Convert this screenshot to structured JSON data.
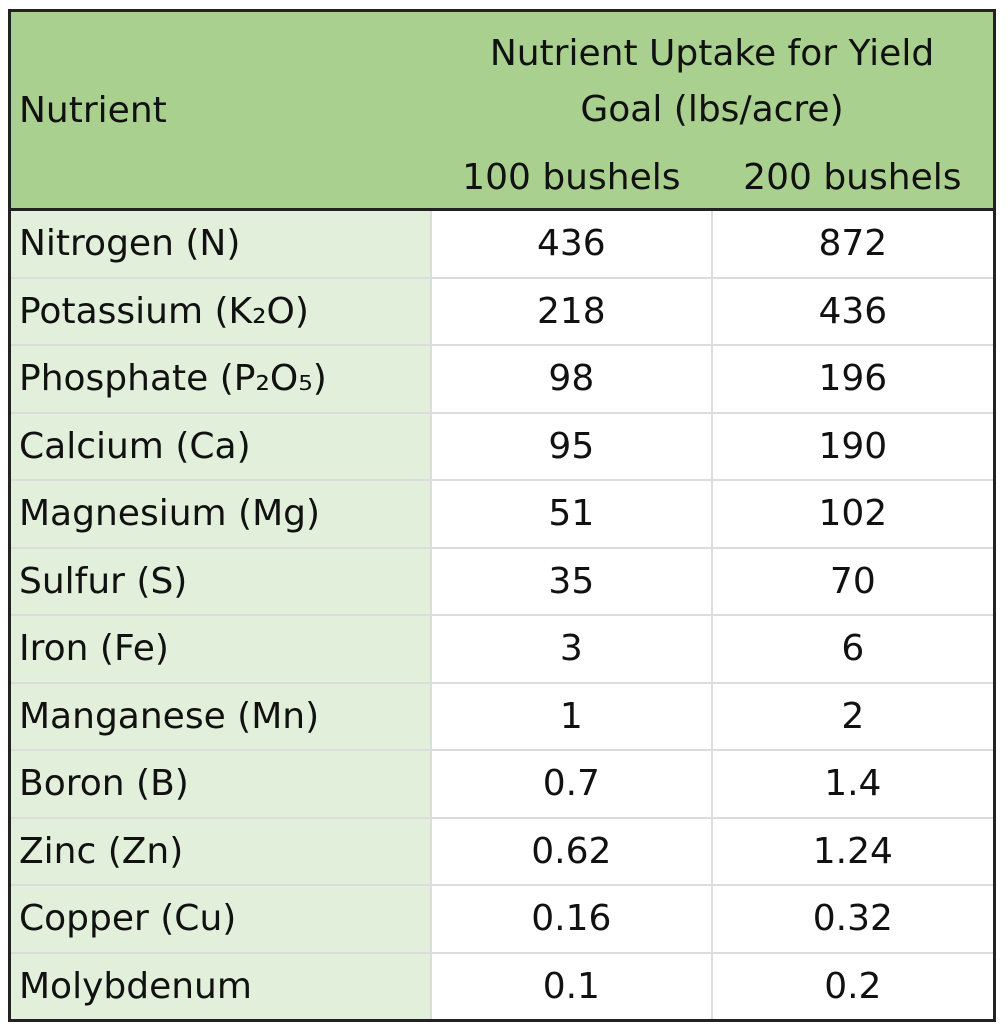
{
  "table": {
    "header": {
      "nutrient": "Nutrient",
      "group": "Nutrient Uptake for Yield Goal (lbs/acre)",
      "columns": [
        "100 bushels",
        "200 bushels"
      ]
    },
    "rows": [
      [
        "Nitrogen (N)",
        436,
        872
      ],
      [
        "Potassium (K₂O)",
        218,
        436
      ],
      [
        "Phosphate (P₂O₅)",
        98,
        196
      ],
      [
        "Calcium (Ca)",
        95,
        190
      ],
      [
        "Magnesium (Mg)",
        51,
        102
      ],
      [
        "Sulfur (S)",
        35,
        70
      ],
      [
        "Iron (Fe)",
        3,
        6
      ],
      [
        "Manganese (Mn)",
        1,
        2
      ],
      [
        "Boron (B)",
        0.7,
        1.4
      ],
      [
        "Zinc (Zn)",
        0.62,
        1.24
      ],
      [
        "Copper (Cu)",
        0.16,
        0.32
      ],
      [
        "Molybdenum",
        0.1,
        0.2
      ]
    ]
  }
}
